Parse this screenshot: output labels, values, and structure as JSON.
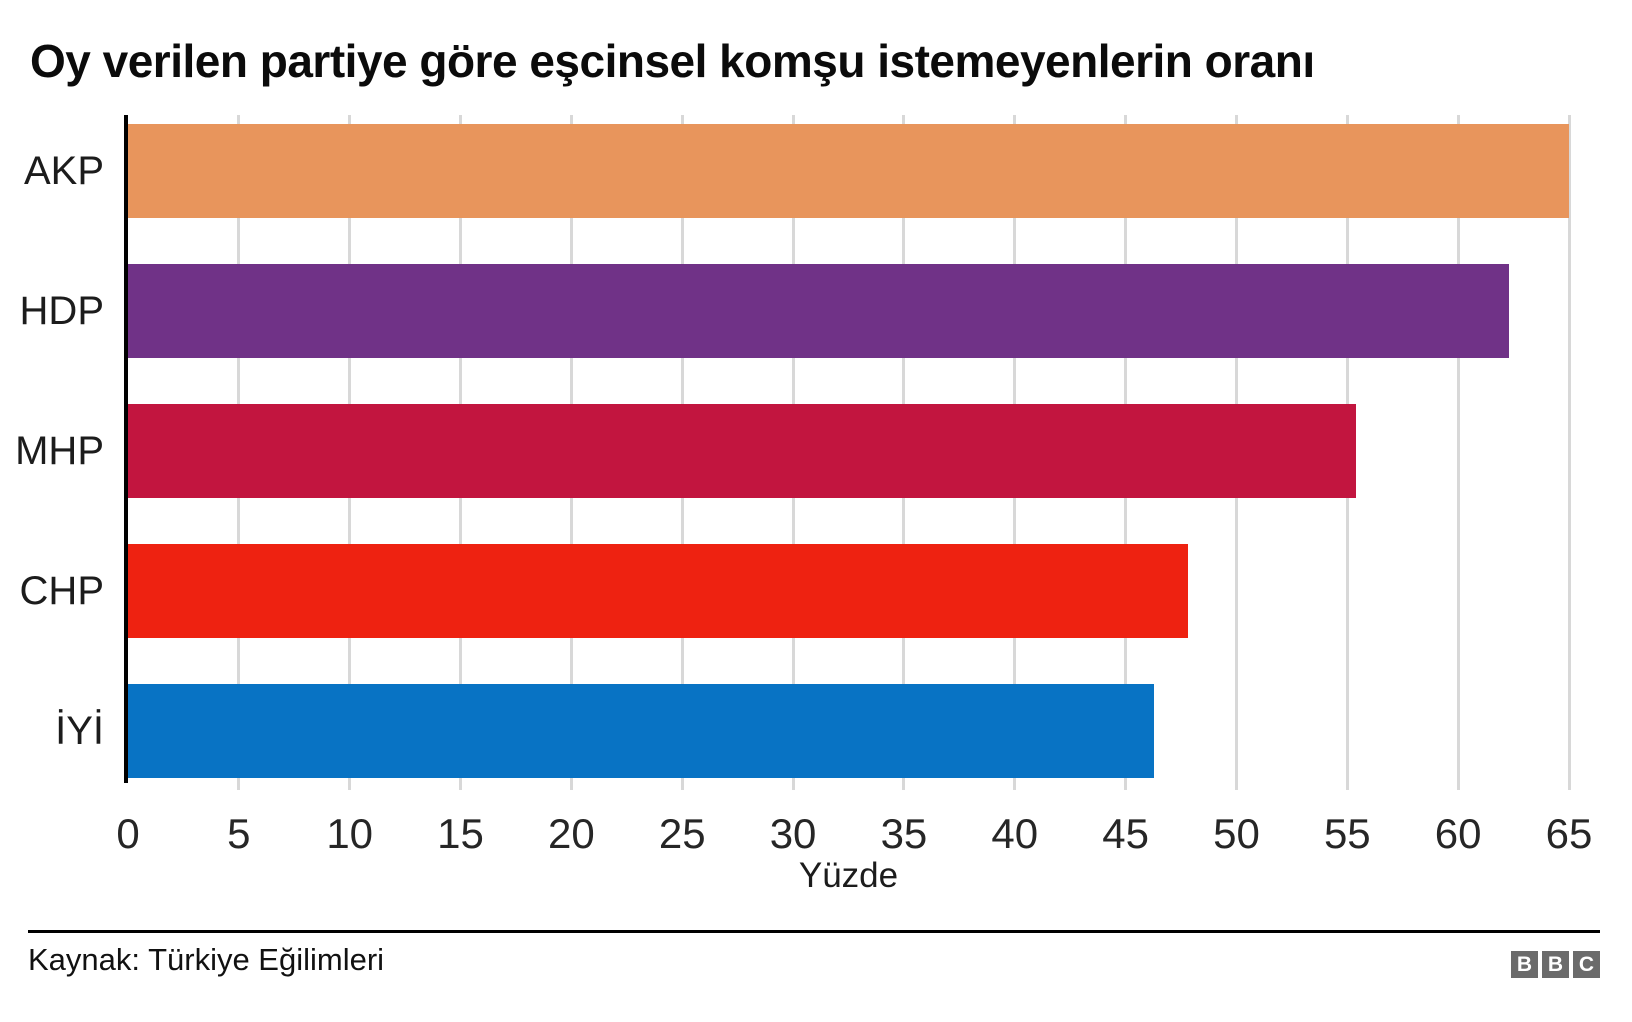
{
  "title": "Oy verilen partiye göre eşcinsel komşu istemeyenlerin oranı",
  "chart_data": {
    "type": "bar",
    "orientation": "horizontal",
    "title": "Oy verilen partiye göre eşcinsel komşu istemeyenlerin oranı",
    "categories": [
      "AKP",
      "HDP",
      "MHP",
      "CHP",
      "İYİ"
    ],
    "values": [
      65,
      62.3,
      55.4,
      47.8,
      46.3
    ],
    "bar_colors": [
      "#e8955c",
      "#703287",
      "#c2153f",
      "#ee2211",
      "#0873c4"
    ],
    "xlabel": "Yüzde",
    "ylabel": "",
    "xlim": [
      0,
      65
    ],
    "xticks": [
      0,
      5,
      10,
      15,
      20,
      25,
      30,
      35,
      40,
      45,
      50,
      55,
      60,
      65
    ],
    "grid": "vertical",
    "gridline_color": "#d8d8d8",
    "axis_line_color": "#000000",
    "legend": "none"
  },
  "footer": {
    "source": "Kaynak: Türkiye Eğilimleri",
    "logo_letters": [
      "B",
      "B",
      "C"
    ],
    "logo_block_color": "#6b6b6b"
  }
}
